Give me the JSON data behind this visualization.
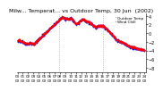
{
  "background_color": "#ffffff",
  "plot_bg_color": "#ffffff",
  "outdoor_temp_color": "#ff0000",
  "wind_chill_color": "#0000ff",
  "n_points": 1440,
  "ylim": [
    -9,
    4.5
  ],
  "yticks": [
    4,
    2,
    0,
    -2,
    -4,
    -6,
    -8
  ],
  "legend_outdoor": "Outdoor Temp",
  "legend_windchill": "Wind Chill",
  "title_fontsize": 4.5,
  "tick_fontsize": 3.5,
  "marker_size": 1.5,
  "grid_color": "#999999",
  "n_grid_lines": 2,
  "title": "Milw... Temperat... vs Outdoor Temp, 30 Jun  (2002)"
}
